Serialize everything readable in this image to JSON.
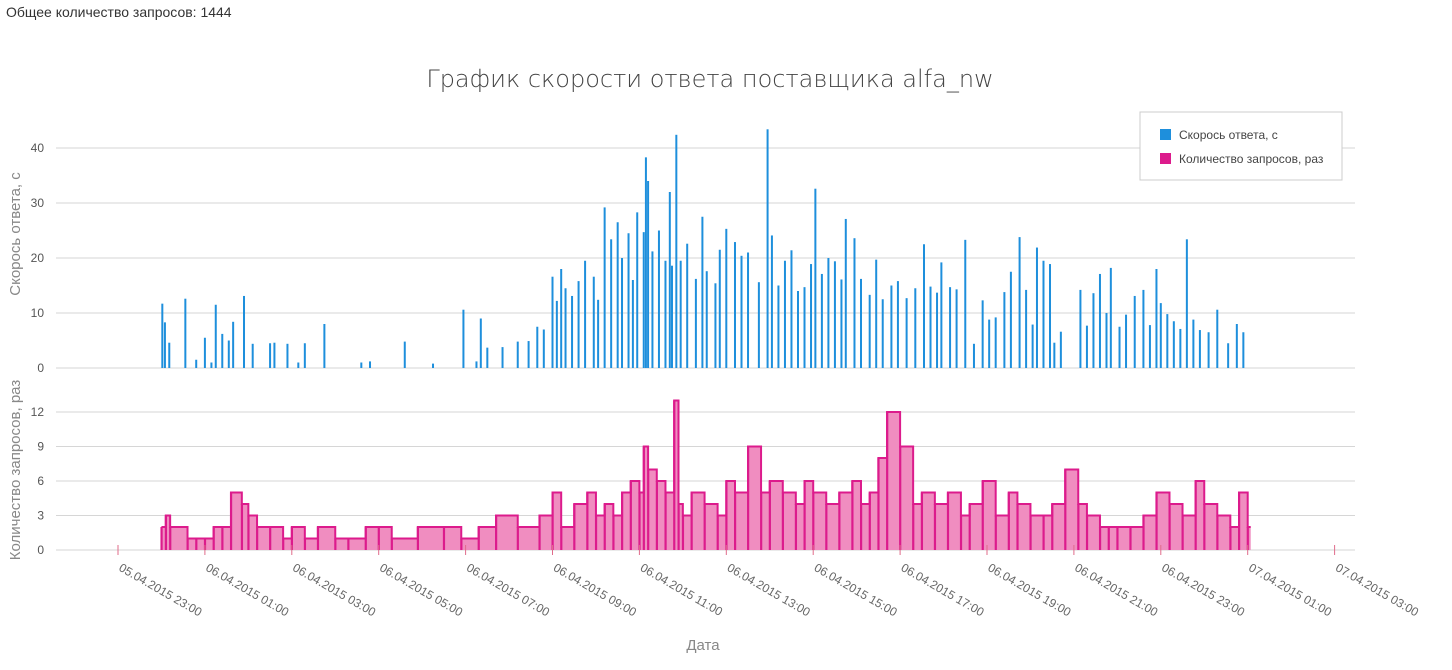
{
  "header": {
    "total_label": "Общее количество запросов: 1444"
  },
  "chart_data": {
    "type": "bar",
    "title": "График скорости ответа поставщика alfa_nw",
    "xlabel": "Дата",
    "x_range_hours": [
      -1,
      28
    ],
    "x_ticks": [
      "05.04.2015 23:00",
      "06.04.2015 01:00",
      "06.04.2015 03:00",
      "06.04.2015 05:00",
      "06.04.2015 07:00",
      "06.04.2015 09:00",
      "06.04.2015 11:00",
      "06.04.2015 13:00",
      "06.04.2015 15:00",
      "06.04.2015 17:00",
      "06.04.2015 19:00",
      "06.04.2015 21:00",
      "06.04.2015 23:00",
      "07.04.2015 01:00",
      "07.04.2015 03:00"
    ],
    "panels": [
      {
        "ylabel": "Скорось ответа, с",
        "ylim": [
          0,
          45
        ],
        "yticks": [
          0,
          10,
          20,
          30,
          40
        ],
        "series": [
          {
            "name": "Скорось ответа, с",
            "type": "bar",
            "color": "#1e8fdc",
            "points": [
              [
                0.02,
                11.7
              ],
              [
                0.08,
                8.3
              ],
              [
                0.18,
                4.6
              ],
              [
                0.55,
                12.6
              ],
              [
                0.8,
                1.5
              ],
              [
                1.0,
                5.5
              ],
              [
                1.15,
                1.0
              ],
              [
                1.25,
                11.5
              ],
              [
                1.4,
                6.2
              ],
              [
                1.55,
                5.0
              ],
              [
                1.65,
                8.4
              ],
              [
                1.9,
                13.1
              ],
              [
                2.1,
                4.4
              ],
              [
                2.5,
                4.5
              ],
              [
                2.6,
                4.6
              ],
              [
                2.9,
                4.4
              ],
              [
                3.15,
                1.0
              ],
              [
                3.3,
                4.5
              ],
              [
                3.75,
                8.0
              ],
              [
                4.6,
                1.0
              ],
              [
                4.8,
                1.2
              ],
              [
                5.6,
                4.8
              ],
              [
                6.25,
                0.8
              ],
              [
                6.95,
                10.6
              ],
              [
                7.25,
                1.2
              ],
              [
                7.35,
                9.0
              ],
              [
                7.5,
                3.7
              ],
              [
                7.85,
                3.8
              ],
              [
                8.2,
                4.8
              ],
              [
                8.45,
                4.9
              ],
              [
                8.65,
                7.5
              ],
              [
                8.8,
                7.0
              ],
              [
                9.0,
                16.6
              ],
              [
                9.1,
                12.2
              ],
              [
                9.2,
                18.0
              ],
              [
                9.3,
                14.5
              ],
              [
                9.45,
                13.1
              ],
              [
                9.6,
                15.8
              ],
              [
                9.75,
                19.5
              ],
              [
                9.95,
                16.6
              ],
              [
                10.05,
                12.4
              ],
              [
                10.2,
                29.2
              ],
              [
                10.35,
                23.4
              ],
              [
                10.5,
                26.5
              ],
              [
                10.6,
                20.0
              ],
              [
                10.75,
                24.5
              ],
              [
                10.85,
                16.0
              ],
              [
                10.95,
                28.3
              ],
              [
                11.1,
                24.7
              ],
              [
                11.15,
                38.3
              ],
              [
                11.2,
                34.0
              ],
              [
                11.3,
                21.2
              ],
              [
                11.45,
                25.0
              ],
              [
                11.6,
                19.5
              ],
              [
                11.7,
                32.0
              ],
              [
                11.75,
                18.6
              ],
              [
                11.85,
                42.4
              ],
              [
                11.95,
                19.5
              ],
              [
                12.1,
                22.6
              ],
              [
                12.3,
                16.2
              ],
              [
                12.45,
                27.5
              ],
              [
                12.55,
                17.6
              ],
              [
                12.75,
                15.4
              ],
              [
                12.85,
                21.5
              ],
              [
                13.0,
                25.3
              ],
              [
                13.2,
                22.9
              ],
              [
                13.35,
                20.4
              ],
              [
                13.5,
                21.0
              ],
              [
                13.75,
                15.6
              ],
              [
                13.95,
                43.4
              ],
              [
                14.05,
                24.1
              ],
              [
                14.2,
                15.0
              ],
              [
                14.35,
                19.5
              ],
              [
                14.5,
                21.4
              ],
              [
                14.65,
                14.0
              ],
              [
                14.8,
                14.7
              ],
              [
                14.95,
                18.9
              ],
              [
                15.05,
                32.6
              ],
              [
                15.2,
                17.1
              ],
              [
                15.35,
                20.0
              ],
              [
                15.5,
                19.4
              ],
              [
                15.65,
                16.1
              ],
              [
                15.75,
                27.1
              ],
              [
                15.95,
                23.6
              ],
              [
                16.1,
                16.2
              ],
              [
                16.3,
                13.3
              ],
              [
                16.45,
                19.7
              ],
              [
                16.6,
                12.5
              ],
              [
                16.8,
                15.0
              ],
              [
                16.95,
                15.8
              ],
              [
                17.15,
                12.7
              ],
              [
                17.35,
                14.5
              ],
              [
                17.55,
                22.5
              ],
              [
                17.7,
                14.8
              ],
              [
                17.85,
                13.7
              ],
              [
                17.95,
                19.2
              ],
              [
                18.15,
                14.7
              ],
              [
                18.3,
                14.3
              ],
              [
                18.5,
                23.3
              ],
              [
                18.7,
                4.4
              ],
              [
                18.9,
                12.3
              ],
              [
                19.05,
                8.8
              ],
              [
                19.2,
                9.2
              ],
              [
                19.4,
                13.8
              ],
              [
                19.55,
                17.5
              ],
              [
                19.75,
                23.8
              ],
              [
                19.9,
                14.2
              ],
              [
                20.05,
                7.9
              ],
              [
                20.15,
                21.9
              ],
              [
                20.3,
                19.5
              ],
              [
                20.45,
                18.9
              ],
              [
                20.55,
                4.6
              ],
              [
                20.7,
                6.6
              ],
              [
                21.15,
                14.2
              ],
              [
                21.3,
                7.7
              ],
              [
                21.45,
                13.6
              ],
              [
                21.6,
                17.1
              ],
              [
                21.75,
                10.0
              ],
              [
                21.85,
                18.2
              ],
              [
                22.05,
                7.5
              ],
              [
                22.2,
                9.7
              ],
              [
                22.4,
                13.1
              ],
              [
                22.6,
                14.2
              ],
              [
                22.75,
                7.8
              ],
              [
                22.9,
                18.0
              ],
              [
                23.0,
                11.8
              ],
              [
                23.15,
                9.8
              ],
              [
                23.3,
                8.5
              ],
              [
                23.45,
                7.1
              ],
              [
                23.6,
                23.4
              ],
              [
                23.75,
                8.8
              ],
              [
                23.9,
                6.9
              ],
              [
                24.1,
                6.5
              ],
              [
                24.3,
                10.6
              ],
              [
                24.55,
                4.5
              ],
              [
                24.75,
                8.0
              ],
              [
                24.9,
                6.5
              ]
            ]
          }
        ]
      },
      {
        "ylabel": "Количество запросов, раз",
        "ylim": [
          0,
          13.5
        ],
        "yticks": [
          0,
          3,
          6,
          9,
          12
        ],
        "series": [
          {
            "name": "Количество запросов, раз",
            "type": "area",
            "color": "#dc1b8c",
            "fill": "#f08dc0",
            "x": [
              0.0,
              0.1,
              0.2,
              0.6,
              0.8,
              1.0,
              1.2,
              1.4,
              1.6,
              1.85,
              2.0,
              2.2,
              2.5,
              2.8,
              3.0,
              3.3,
              3.6,
              4.0,
              4.3,
              4.7,
              5.0,
              5.3,
              5.9,
              6.5,
              6.9,
              7.3,
              7.7,
              8.2,
              8.7,
              9.0,
              9.2,
              9.5,
              9.8,
              10.0,
              10.2,
              10.4,
              10.6,
              10.8,
              11.0,
              11.1,
              11.2,
              11.4,
              11.6,
              11.8,
              11.9,
              12.0,
              12.2,
              12.5,
              12.8,
              13.0,
              13.2,
              13.5,
              13.8,
              14.0,
              14.3,
              14.6,
              14.8,
              15.0,
              15.3,
              15.6,
              15.9,
              16.1,
              16.3,
              16.5,
              16.7,
              17.0,
              17.3,
              17.5,
              17.8,
              18.1,
              18.4,
              18.6,
              18.9,
              19.2,
              19.5,
              19.7,
              20.0,
              20.3,
              20.5,
              20.8,
              21.1,
              21.3,
              21.6,
              21.8,
              22.0,
              22.3,
              22.6,
              22.9,
              23.2,
              23.5,
              23.8,
              24.0,
              24.3,
              24.6,
              24.8,
              25.0
            ],
            "y": [
              2,
              3,
              2,
              1,
              1,
              1,
              2,
              2,
              5,
              4,
              3,
              2,
              2,
              1,
              2,
              1,
              2,
              1,
              1,
              2,
              2,
              1,
              2,
              2,
              1,
              2,
              3,
              2,
              3,
              5,
              2,
              4,
              5,
              3,
              4,
              3,
              5,
              6,
              5,
              9,
              7,
              6,
              5,
              13,
              4,
              3,
              5,
              4,
              3,
              6,
              5,
              9,
              5,
              6,
              5,
              4,
              6,
              5,
              4,
              5,
              6,
              4,
              5,
              8,
              12,
              9,
              4,
              5,
              4,
              5,
              3,
              4,
              6,
              3,
              5,
              4,
              3,
              3,
              4,
              7,
              4,
              3,
              2,
              2,
              2,
              2,
              3,
              5,
              4,
              3,
              6,
              4,
              3,
              2,
              5,
              2
            ]
          }
        ]
      }
    ],
    "legend": {
      "placement": "top-right",
      "items": [
        {
          "label": "Скорось ответа, с",
          "color": "#1e8fdc"
        },
        {
          "label": "Количество запросов, раз",
          "color": "#dc1b8c"
        }
      ]
    },
    "grid": true
  }
}
